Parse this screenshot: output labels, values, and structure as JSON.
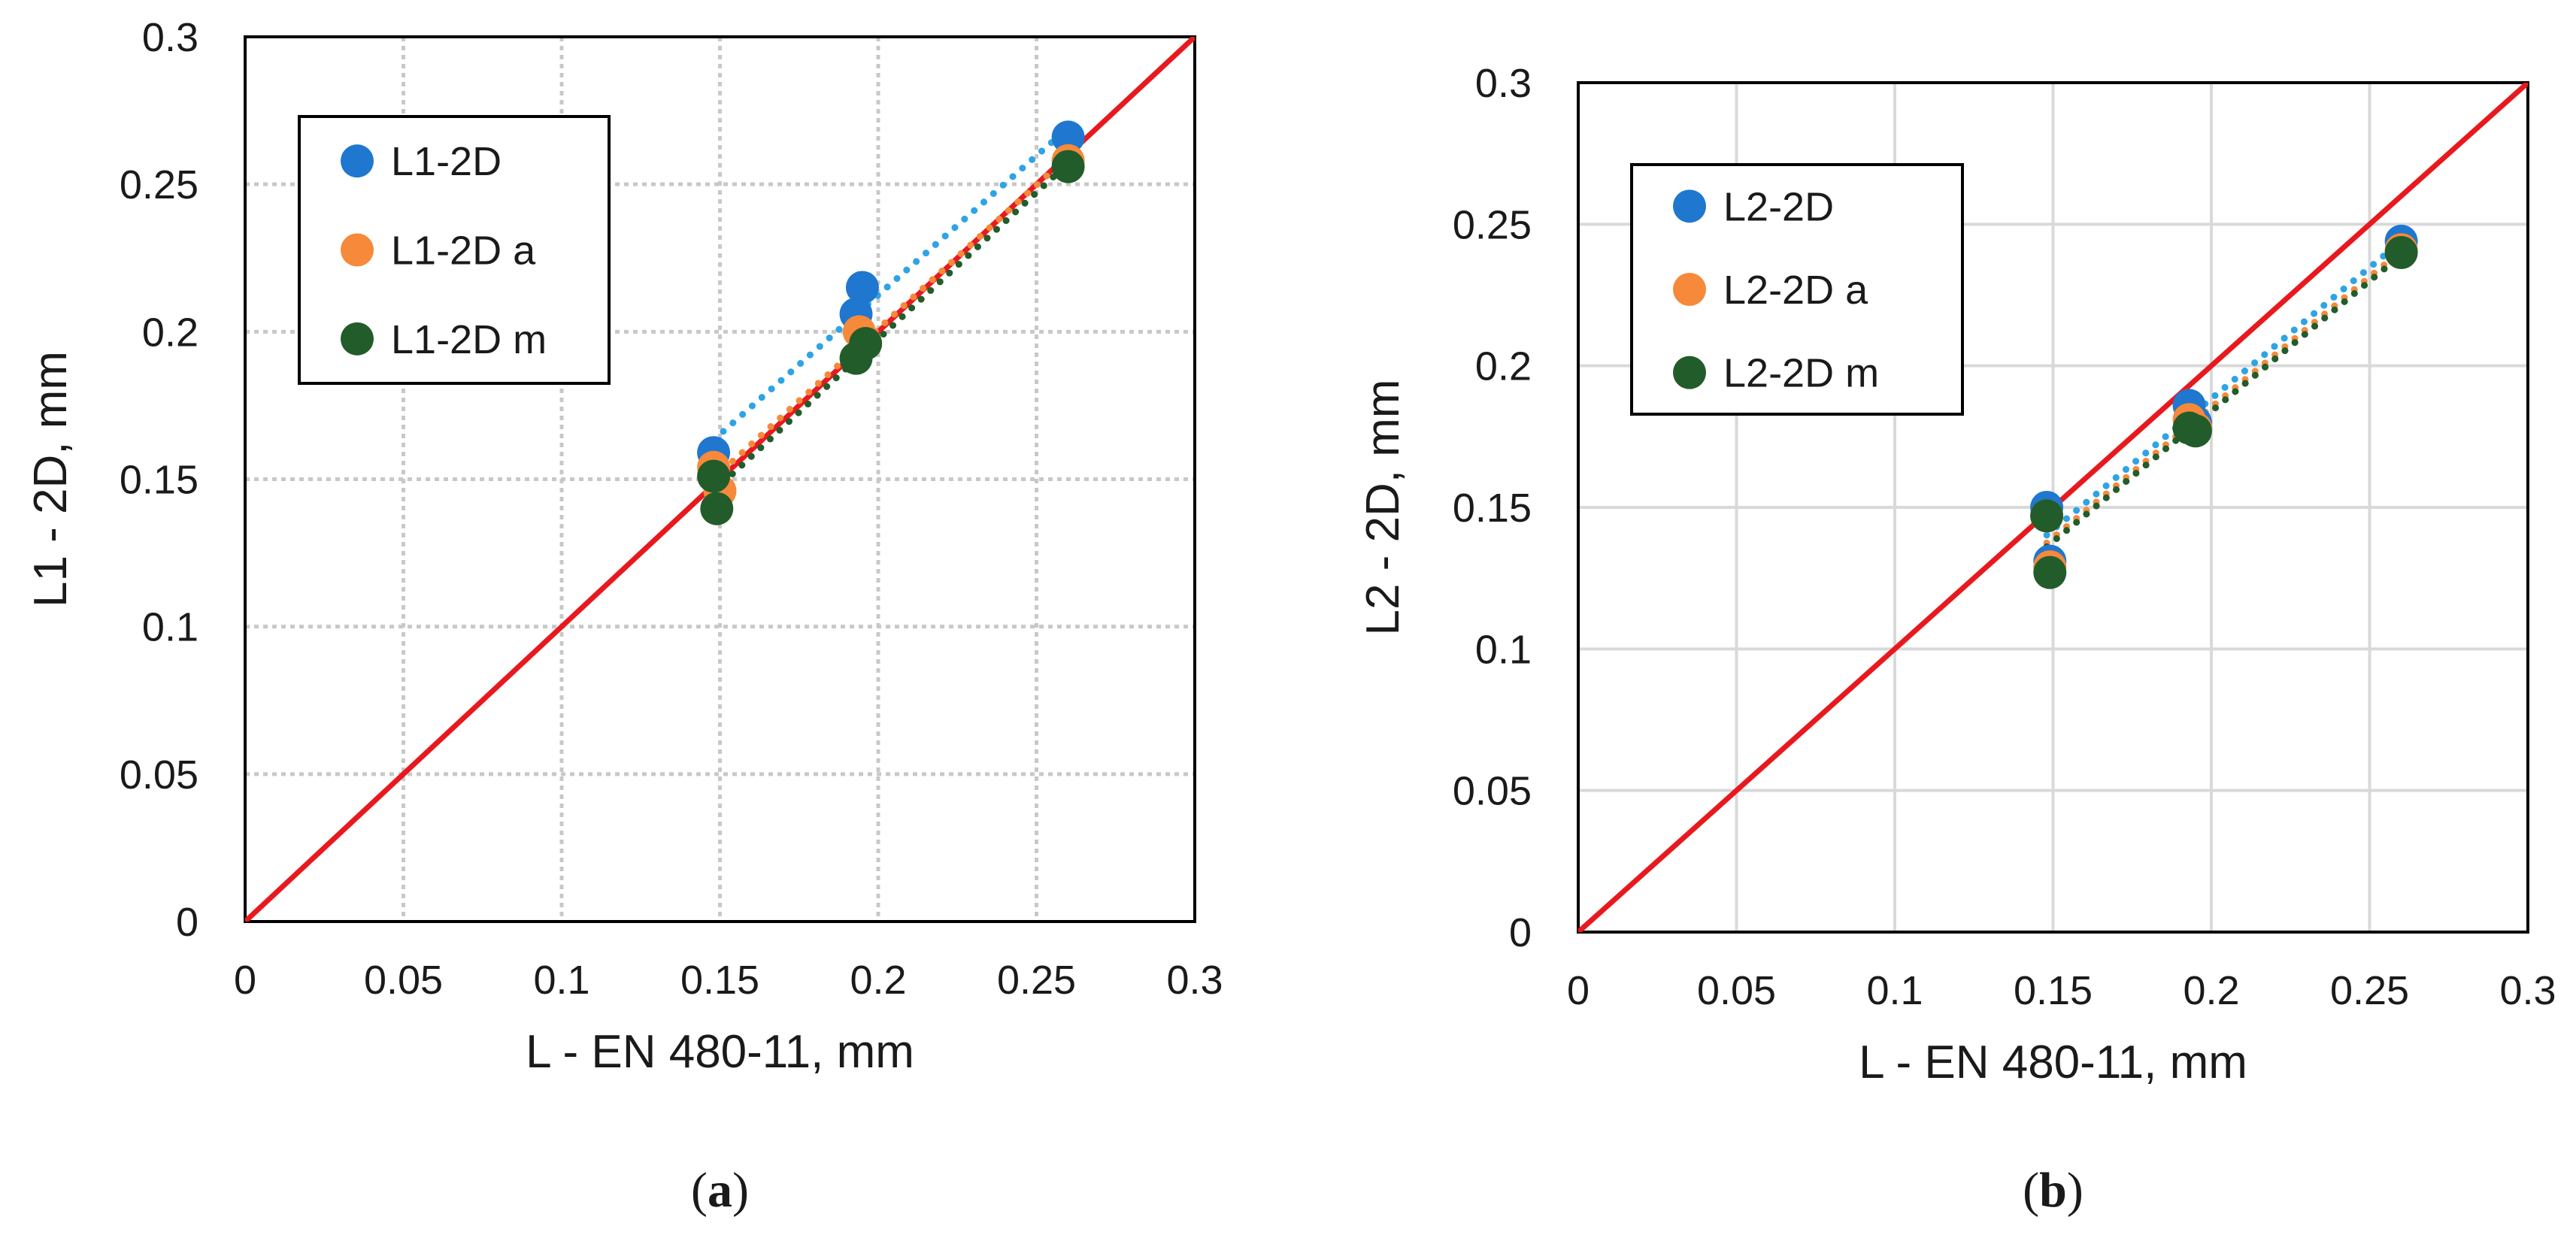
{
  "chart_data": [
    {
      "id": "a",
      "type": "scatter",
      "caption": "a",
      "xlabel": "L - EN 480-11, mm",
      "ylabel": "L1 -  2D, mm",
      "xlim": [
        0,
        0.3
      ],
      "ylim": [
        0,
        0.3
      ],
      "xticks": [
        "0",
        "0.05",
        "0.1",
        "0.15",
        "0.2",
        "0.25",
        "0.3"
      ],
      "yticks": [
        "0",
        "0.05",
        "0.1",
        "0.15",
        "0.2",
        "0.25",
        "0.3"
      ],
      "grid": "dotted",
      "legend_position": "top-left",
      "reference_line": {
        "from": [
          0,
          0
        ],
        "to": [
          0.3,
          0.3
        ],
        "color": "#e8191e"
      },
      "series": [
        {
          "name": "L1-2D",
          "color": "#1f77cf",
          "trend_color": "#2ea3e6",
          "points": [
            [
              0.148,
              0.159
            ],
            [
              0.193,
              0.206
            ],
            [
              0.195,
              0.215
            ],
            [
              0.26,
              0.266
            ]
          ]
        },
        {
          "name": "L1-2D a",
          "color": "#f7893a",
          "trend_color": "#f7893a",
          "points": [
            [
              0.148,
              0.154
            ],
            [
              0.15,
              0.146
            ],
            [
              0.194,
              0.2
            ],
            [
              0.196,
              0.196
            ],
            [
              0.26,
              0.258
            ]
          ]
        },
        {
          "name": "L1-2D m",
          "color": "#225c2a",
          "trend_color": "#225c2a",
          "points": [
            [
              0.148,
              0.151
            ],
            [
              0.149,
              0.14
            ],
            [
              0.193,
              0.191
            ],
            [
              0.196,
              0.196
            ],
            [
              0.26,
              0.256
            ]
          ]
        }
      ]
    },
    {
      "id": "b",
      "type": "scatter",
      "caption": "b",
      "xlabel": "L - EN 480-11, mm",
      "ylabel": "L2 -  2D, mm",
      "xlim": [
        0,
        0.3
      ],
      "ylim": [
        0,
        0.3
      ],
      "xticks": [
        "0",
        "0.05",
        "0.1",
        "0.15",
        "0.2",
        "0.25",
        "0.3"
      ],
      "yticks": [
        "0",
        "0.05",
        "0.1",
        "0.15",
        "0.2",
        "0.25",
        "0.3"
      ],
      "grid": "solid",
      "legend_position": "top-left",
      "reference_line": {
        "from": [
          0,
          0
        ],
        "to": [
          0.3,
          0.3
        ],
        "color": "#e8191e"
      },
      "series": [
        {
          "name": "L2-2D",
          "color": "#1f77cf",
          "trend_color": "#2ea3e6",
          "points": [
            [
              0.148,
              0.15
            ],
            [
              0.149,
              0.131
            ],
            [
              0.193,
              0.186
            ],
            [
              0.195,
              0.18
            ],
            [
              0.26,
              0.244
            ]
          ]
        },
        {
          "name": "L2-2D a",
          "color": "#f7893a",
          "trend_color": "#f7893a",
          "points": [
            [
              0.148,
              0.147
            ],
            [
              0.149,
              0.129
            ],
            [
              0.193,
              0.181
            ],
            [
              0.195,
              0.178
            ],
            [
              0.26,
              0.241
            ]
          ]
        },
        {
          "name": "L2-2D m",
          "color": "#225c2a",
          "trend_color": "#225c2a",
          "points": [
            [
              0.148,
              0.147
            ],
            [
              0.149,
              0.127
            ],
            [
              0.193,
              0.178
            ],
            [
              0.195,
              0.177
            ],
            [
              0.26,
              0.24
            ]
          ]
        }
      ]
    }
  ]
}
